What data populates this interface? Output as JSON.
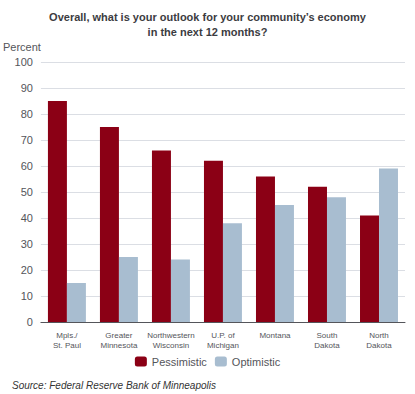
{
  "chart_data": {
    "type": "bar",
    "title": "Overall, what is your outlook for your community’s economy\nin the next 12 months?",
    "ylabel": "Percent",
    "annotations": [
      "Source: Federal Reserve Bank of Minneapolis"
    ],
    "categories": [
      "Mpls./\nSt. Paul",
      "Greater\nMinnesota",
      "Northwestern\nWisconsin",
      "U.P. of\nMichigan",
      "Montana",
      "South\nDakota",
      "North\nDakota"
    ],
    "series": [
      {
        "name": "Pessimistic",
        "color": "#8B0015",
        "values": [
          85,
          75,
          66,
          62,
          56,
          52,
          41
        ]
      },
      {
        "name": "Optimistic",
        "color": "#A8BDD0",
        "values": [
          15,
          25,
          24,
          38,
          45,
          48,
          59
        ]
      }
    ],
    "ylim": [
      0,
      100
    ],
    "yticks": [
      0,
      10,
      20,
      30,
      40,
      50,
      60,
      70,
      80,
      90,
      100
    ],
    "grid": true,
    "legend": "bottom"
  }
}
